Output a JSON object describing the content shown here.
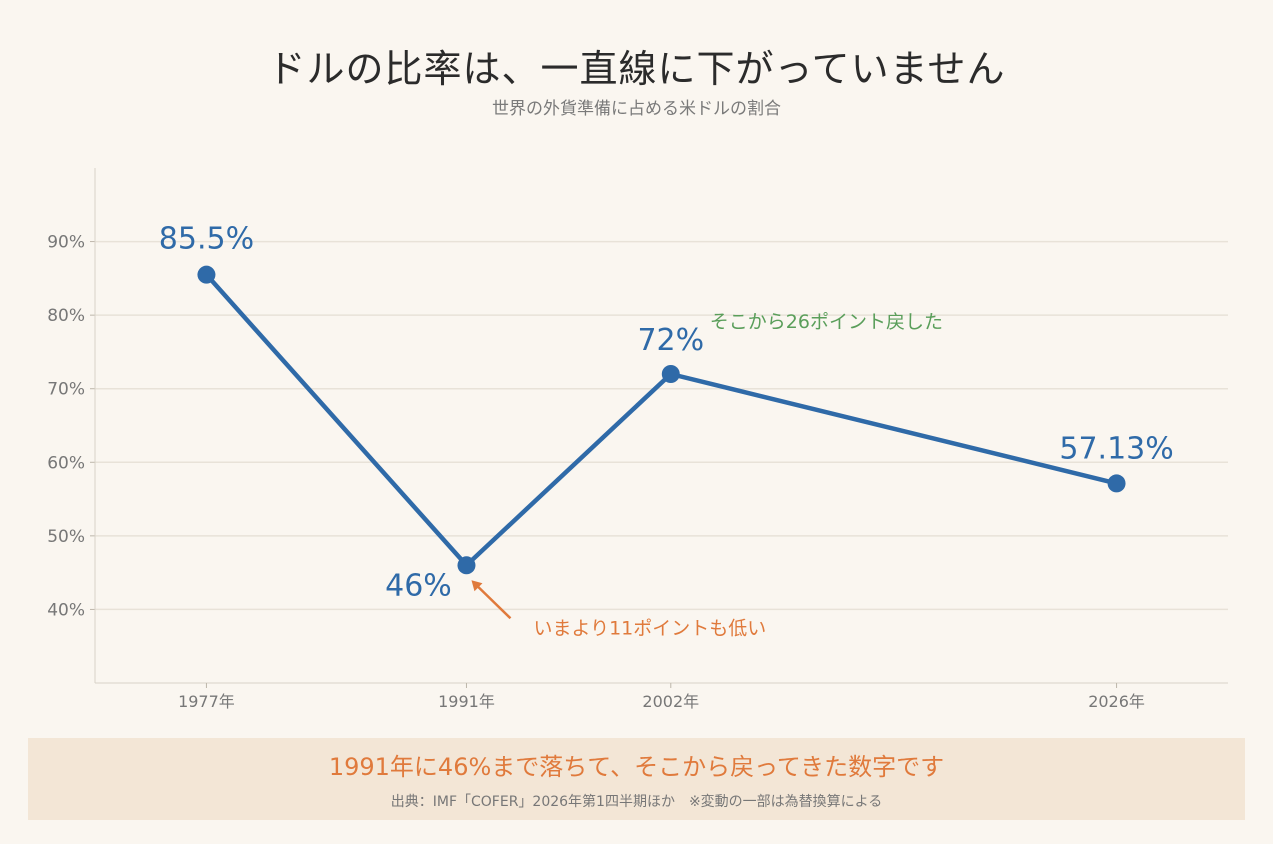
{
  "header": {
    "title": "ドルの比率は、一直線に下がっていません",
    "subtitle": "世界の外貨準備に占める米ドルの割合"
  },
  "chart_data": {
    "type": "line",
    "x": [
      "1977年",
      "1991年",
      "2002年",
      "2026年"
    ],
    "x_numeric": [
      1977,
      1991,
      2002,
      2026
    ],
    "xlim": [
      1971,
      2032
    ],
    "series": [
      {
        "values": [
          85.5,
          46,
          72,
          57.13
        ],
        "labels": [
          "85.5%",
          "46%",
          "72%",
          "57.13%"
        ],
        "color": "#2f6aa8"
      }
    ],
    "ylim": [
      30,
      100
    ],
    "yticks": [
      40,
      50,
      60,
      70,
      80,
      90
    ],
    "ytick_labels": [
      "40%",
      "50%",
      "60%",
      "70%",
      "80%",
      "90%"
    ],
    "grid": true,
    "annotations": [
      {
        "text": "そこから26ポイント戻した",
        "color": "#5a9e5a",
        "anchor": "2002年"
      },
      {
        "text": "いまより11ポイントも低い",
        "color": "#e07a3c",
        "anchor": "1991年"
      }
    ]
  },
  "footer": {
    "headline": "1991年に46%まで落ちて、そこから戻ってきた数字です",
    "note": "出典：IMF「COFER」2026年第1四半期ほか　※変動の一部は為替換算による"
  },
  "colors": {
    "background": "#faf6f0",
    "line": "#2f6aa8",
    "accent_orange": "#e07a3c",
    "accent_green": "#5a9e5a",
    "grid": "#e8e2d8",
    "footer_bg": "#f3e6d6"
  }
}
